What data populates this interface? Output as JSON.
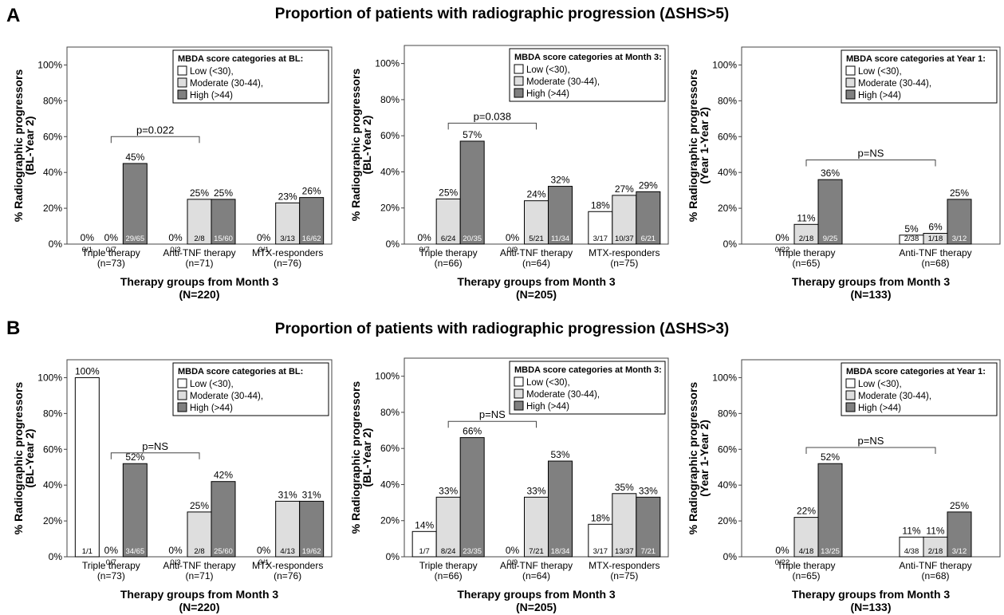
{
  "sections": [
    {
      "letter": "A",
      "title": "Proportion of patients with radiographic progression (ΔSHS>5)"
    },
    {
      "letter": "B",
      "title": "Proportion of patients with radiographic progression (ΔSHS>3)"
    }
  ],
  "colors": {
    "low": "#ffffff",
    "moderate": "#dedede",
    "high": "#808080",
    "stroke": "#000000"
  },
  "chart_data": [
    {
      "type": "bar",
      "section": "A",
      "ylabel": [
        "% Radiographic progressors",
        "(BL-Year 2)"
      ],
      "xlabel": [
        "Therapy groups from Month 3",
        "(N=220)"
      ],
      "yticks": [
        "0%",
        "20%",
        "40%",
        "60%",
        "80%",
        "100%"
      ],
      "ylim": [
        0,
        110
      ],
      "legend": {
        "title": "MBDA score categories at BL:",
        "entries": [
          "Low (<30),",
          "Moderate (30-44),",
          "High (>44)"
        ],
        "position": "top-right"
      },
      "categories": [
        [
          "Triple therapy",
          "(n=73)"
        ],
        [
          "Anti-TNF therapy",
          "(n=71)"
        ],
        [
          "MTX-responders",
          "(n=76)"
        ]
      ],
      "series": [
        {
          "name": "Low (<30)",
          "values": [
            0,
            0,
            0
          ],
          "labels": [
            "0%",
            "0%",
            "0%"
          ],
          "counts": [
            "0/1",
            "0/3",
            "0/1"
          ]
        },
        {
          "name": "Moderate (30-44)",
          "values": [
            0,
            25,
            23
          ],
          "labels": [
            "0%",
            "25%",
            "23%"
          ],
          "counts": [
            "0/7",
            "2/8",
            "3/13"
          ]
        },
        {
          "name": "High (>44)",
          "values": [
            45,
            25,
            26
          ],
          "labels": [
            "45%",
            "25%",
            "26%"
          ],
          "counts": [
            "29/65",
            "15/60",
            "16/62"
          ]
        }
      ],
      "annotation": {
        "text": "p=0.022",
        "from": 0,
        "to": 1,
        "level": 60
      }
    },
    {
      "type": "bar",
      "section": "A",
      "ylabel": [
        "% Radiographic progressors",
        "(BL-Year 2)"
      ],
      "xlabel": [
        "Therapy groups from Month 3",
        "(N=205)"
      ],
      "yticks": [
        "0%",
        "20%",
        "40%",
        "60%",
        "80%",
        "100%"
      ],
      "ylim": [
        0,
        110
      ],
      "legend": {
        "title": "MBDA score categories at Month 3:",
        "entries": [
          "Low (<30),",
          "Moderate (30-44),",
          "High (>44)"
        ],
        "position": "top-right"
      },
      "categories": [
        [
          "Triple therapy",
          "(n=66)"
        ],
        [
          "Anti-TNF therapy",
          "(n=64)"
        ],
        [
          "MTX-responders",
          "(n=75)"
        ]
      ],
      "series": [
        {
          "name": "Low (<30)",
          "values": [
            0,
            0,
            18
          ],
          "labels": [
            "0%",
            "0%",
            "18%"
          ],
          "counts": [
            "0/7",
            "0/9",
            "3/17"
          ]
        },
        {
          "name": "Moderate (30-44)",
          "values": [
            25,
            24,
            27
          ],
          "labels": [
            "25%",
            "24%",
            "27%"
          ],
          "counts": [
            "6/24",
            "5/21",
            "10/37"
          ]
        },
        {
          "name": "High (>44)",
          "values": [
            57,
            32,
            29
          ],
          "labels": [
            "57%",
            "32%",
            "29%"
          ],
          "counts": [
            "20/35",
            "11/34",
            "6/21"
          ]
        }
      ],
      "annotation": {
        "text": "p=0.038",
        "from": 0,
        "to": 1,
        "level": 67
      }
    },
    {
      "type": "bar",
      "section": "A",
      "ylabel": [
        "% Radiographic progressors",
        "(Year 1-Year 2)"
      ],
      "xlabel": [
        "Therapy groups from Month 3",
        "(N=133)"
      ],
      "yticks": [
        "0%",
        "20%",
        "40%",
        "60%",
        "80%",
        "100%"
      ],
      "ylim": [
        0,
        110
      ],
      "legend": {
        "title": "MBDA score categories at Year 1:",
        "entries": [
          "Low (<30),",
          "Moderate (30-44),",
          "High (>44)"
        ],
        "position": "top-right"
      },
      "categories": [
        [
          "Triple therapy",
          "(n=65)"
        ],
        [
          "Anti-TNF therapy",
          "(n=68)"
        ]
      ],
      "series": [
        {
          "name": "Low (<30)",
          "values": [
            0,
            5
          ],
          "labels": [
            "0%",
            "5%"
          ],
          "counts": [
            "0/22",
            "2/38"
          ]
        },
        {
          "name": "Moderate (30-44)",
          "values": [
            11,
            6
          ],
          "labels": [
            "11%",
            "6%"
          ],
          "counts": [
            "2/18",
            "1/18"
          ]
        },
        {
          "name": "High (>44)",
          "values": [
            36,
            25
          ],
          "labels": [
            "36%",
            "25%"
          ],
          "counts": [
            "9/25",
            "3/12"
          ]
        }
      ],
      "annotation": {
        "text": "p=NS",
        "from": 0,
        "to": 1,
        "level": 47
      }
    },
    {
      "type": "bar",
      "section": "B",
      "ylabel": [
        "% Radiographic progressors",
        "(BL-Year 2)"
      ],
      "xlabel": [
        "Therapy groups from Month 3",
        "(N=220)"
      ],
      "yticks": [
        "0%",
        "20%",
        "40%",
        "60%",
        "80%",
        "100%"
      ],
      "ylim": [
        0,
        110
      ],
      "legend": {
        "title": "MBDA score categories at BL:",
        "entries": [
          "Low (<30),",
          "Moderate (30-44),",
          "High (>44)"
        ],
        "position": "top-right"
      },
      "categories": [
        [
          "Triple therapy",
          "(n=73)"
        ],
        [
          "Anti-TNF therapy",
          "(n=71)"
        ],
        [
          "MTX-responders",
          "(n=76)"
        ]
      ],
      "series": [
        {
          "name": "Low (<30)",
          "values": [
            100,
            0,
            0
          ],
          "labels": [
            "100%",
            "0%",
            "0%"
          ],
          "counts": [
            "1/1",
            "0/3",
            "0/1"
          ]
        },
        {
          "name": "Moderate (30-44)",
          "values": [
            0,
            25,
            31
          ],
          "labels": [
            "0%",
            "25%",
            "31%"
          ],
          "counts": [
            "0/7",
            "2/8",
            "4/13"
          ]
        },
        {
          "name": "High (>44)",
          "values": [
            52,
            42,
            31
          ],
          "labels": [
            "52%",
            "42%",
            "31%"
          ],
          "counts": [
            "34/65",
            "25/60",
            "19/62"
          ]
        }
      ],
      "annotation": {
        "text": "p=NS",
        "from": 0,
        "to": 1,
        "level": 58
      }
    },
    {
      "type": "bar",
      "section": "B",
      "ylabel": [
        "% Radiographic progressors",
        "(BL-Year 2)"
      ],
      "xlabel": [
        "Therapy groups from Month 3",
        "(N=205)"
      ],
      "yticks": [
        "0%",
        "20%",
        "40%",
        "60%",
        "80%",
        "100%"
      ],
      "ylim": [
        0,
        110
      ],
      "legend": {
        "title": "MBDA score categories at Month 3:",
        "entries": [
          "Low (<30),",
          "Moderate (30-44),",
          "High (>44)"
        ],
        "position": "top-right"
      },
      "categories": [
        [
          "Triple therapy",
          "(n=66)"
        ],
        [
          "Anti-TNF therapy",
          "(n=64)"
        ],
        [
          "MTX-responders",
          "(n=75)"
        ]
      ],
      "series": [
        {
          "name": "Low (<30)",
          "values": [
            14,
            0,
            18
          ],
          "labels": [
            "14%",
            "0%",
            "18%"
          ],
          "counts": [
            "1/7",
            "0/9",
            "3/17"
          ]
        },
        {
          "name": "Moderate (30-44)",
          "values": [
            33,
            33,
            35
          ],
          "labels": [
            "33%",
            "33%",
            "35%"
          ],
          "counts": [
            "8/24",
            "7/21",
            "13/37"
          ]
        },
        {
          "name": "High (>44)",
          "values": [
            66,
            53,
            33
          ],
          "labels": [
            "66%",
            "53%",
            "33%"
          ],
          "counts": [
            "23/35",
            "18/34",
            "7/21"
          ]
        }
      ],
      "annotation": {
        "text": "p=NS",
        "from": 0,
        "to": 1,
        "level": 75
      }
    },
    {
      "type": "bar",
      "section": "B",
      "ylabel": [
        "% Radiographic progressors",
        "(Year 1-Year 2)"
      ],
      "xlabel": [
        "Therapy groups from Month 3",
        "(N=133)"
      ],
      "yticks": [
        "0%",
        "20%",
        "40%",
        "60%",
        "80%",
        "100%"
      ],
      "ylim": [
        0,
        110
      ],
      "legend": {
        "title": "MBDA score categories at Year 1:",
        "entries": [
          "Low (<30),",
          "Moderate (30-44),",
          "High (>44)"
        ],
        "position": "top-right"
      },
      "categories": [
        [
          "Triple therapy",
          "(n=65)"
        ],
        [
          "Anti-TNF therapy",
          "(n=68)"
        ]
      ],
      "series": [
        {
          "name": "Low (<30)",
          "values": [
            0,
            11
          ],
          "labels": [
            "0%",
            "11%"
          ],
          "counts": [
            "0/22",
            "4/38"
          ]
        },
        {
          "name": "Moderate (30-44)",
          "values": [
            22,
            11
          ],
          "labels": [
            "22%",
            "11%"
          ],
          "counts": [
            "4/18",
            "2/18"
          ]
        },
        {
          "name": "High (>44)",
          "values": [
            52,
            25
          ],
          "labels": [
            "52%",
            "25%"
          ],
          "counts": [
            "13/25",
            "3/12"
          ]
        }
      ],
      "annotation": {
        "text": "p=NS",
        "from": 0,
        "to": 1,
        "level": 61
      }
    }
  ]
}
